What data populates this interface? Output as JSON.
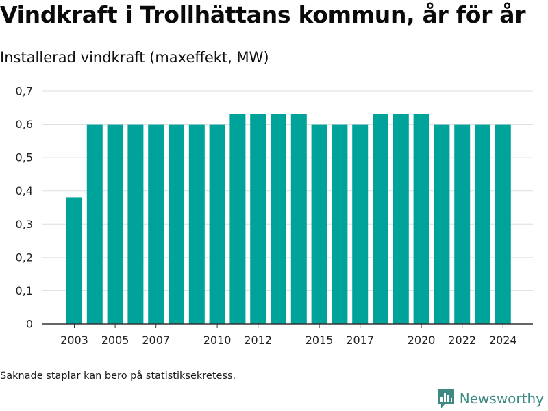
{
  "title": "Vindkraft i Trollhättans kommun, år för år",
  "subtitle": "Installerad vindkraft (maxeffekt, MW)",
  "footnote": "Saknade staplar kan bero på statistiksekretess.",
  "brand": {
    "name": "Newsworthy",
    "icon": "bar-chart-logo-icon",
    "color": "#3d8a84"
  },
  "chart_data": {
    "type": "bar",
    "categories": [
      "2003",
      "2004",
      "2005",
      "2006",
      "2007",
      "2008",
      "2009",
      "2010",
      "2011",
      "2012",
      "2013",
      "2014",
      "2015",
      "2016",
      "2017",
      "2018",
      "2019",
      "2020",
      "2021",
      "2022",
      "2023",
      "2024"
    ],
    "values": [
      0.38,
      0.6,
      0.6,
      0.6,
      0.6,
      0.6,
      0.6,
      0.6,
      0.63,
      0.63,
      0.63,
      0.63,
      0.6,
      0.6,
      0.6,
      0.63,
      0.63,
      0.63,
      0.6,
      0.6,
      0.6,
      0.6
    ],
    "title": "Vindkraft i Trollhättans kommun, år för år",
    "ylabel": "Installerad vindkraft (maxeffekt, MW)",
    "ylim": [
      0,
      0.7
    ],
    "yticks": [
      "0",
      "0,1",
      "0,2",
      "0,3",
      "0,4",
      "0,5",
      "0,6",
      "0,7"
    ],
    "xticks_shown": [
      "2003",
      "2005",
      "2007",
      "2010",
      "2012",
      "2015",
      "2017",
      "2020",
      "2022",
      "2024"
    ],
    "bar_color": "#00a39a",
    "grid": true,
    "legend": "none"
  }
}
